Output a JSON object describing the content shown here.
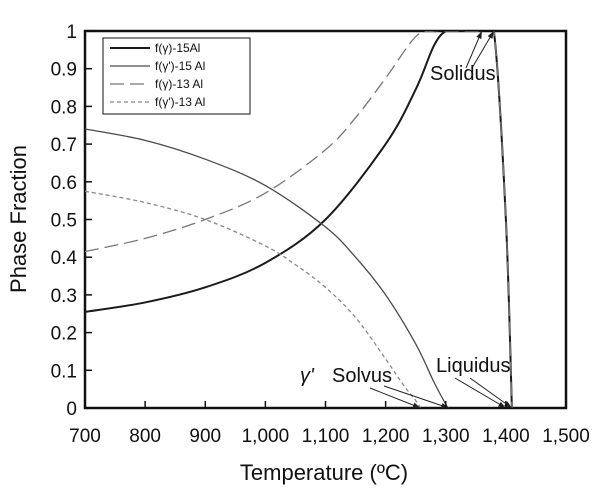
{
  "chart_data": {
    "type": "line",
    "title": "",
    "xlabel": "Temperature (ºC)",
    "ylabel": "Phase Fraction",
    "xlim": [
      700,
      1500
    ],
    "ylim": [
      0,
      1
    ],
    "x_ticks": [
      700,
      800,
      900,
      1000,
      1100,
      1200,
      1300,
      1400,
      1500
    ],
    "x_tick_labels": [
      "700",
      "800",
      "900",
      "1,000",
      "1,100",
      "1,200",
      "1,300",
      "1,400",
      "1,500"
    ],
    "y_ticks": [
      0,
      0.1,
      0.2,
      0.3,
      0.4,
      0.5,
      0.6,
      0.7,
      0.8,
      0.9,
      1
    ],
    "y_tick_labels": [
      "0",
      "0.1",
      "0.2",
      "0.3",
      "0.4",
      "0.5",
      "0.6",
      "0.7",
      "0.8",
      "0.9",
      "1"
    ],
    "grid": false,
    "legend_position": "top-left",
    "series": [
      {
        "name": "f(γ)-15Al",
        "style": "solid",
        "color": "#1a1a1a",
        "x": [
          700,
          800,
          900,
          1000,
          1100,
          1200,
          1250,
          1280,
          1300,
          1320,
          1340,
          1360,
          1380,
          1400,
          1410
        ],
        "y": [
          0.255,
          0.28,
          0.32,
          0.385,
          0.5,
          0.7,
          0.845,
          0.96,
          1.0,
          1.0,
          1.0,
          1.0,
          1.0,
          0.5,
          0
        ]
      },
      {
        "name": "f(γ')-15 Al",
        "style": "solid",
        "color": "#4a4a4a",
        "x": [
          700,
          800,
          900,
          1000,
          1100,
          1150,
          1200,
          1250,
          1280,
          1300,
          1305
        ],
        "y": [
          0.74,
          0.71,
          0.66,
          0.59,
          0.48,
          0.4,
          0.3,
          0.17,
          0.07,
          0.01,
          0
        ]
      },
      {
        "name": "f(γ)-13 Al",
        "style": "longdash",
        "color": "#777777",
        "x": [
          700,
          800,
          900,
          1000,
          1100,
          1150,
          1200,
          1250,
          1280,
          1300,
          1330,
          1360,
          1380,
          1400,
          1410
        ],
        "y": [
          0.415,
          0.45,
          0.5,
          0.57,
          0.685,
          0.77,
          0.875,
          0.985,
          1.0,
          1.0,
          1.0,
          1.0,
          1.0,
          0.5,
          0
        ]
      },
      {
        "name": "f(γ')-13 Al",
        "style": "shortdash",
        "color": "#888888",
        "x": [
          700,
          800,
          900,
          1000,
          1050,
          1100,
          1150,
          1200,
          1230,
          1250,
          1258
        ],
        "y": [
          0.575,
          0.545,
          0.5,
          0.43,
          0.38,
          0.32,
          0.24,
          0.13,
          0.06,
          0.02,
          0
        ]
      }
    ],
    "annotations": [
      {
        "text": "Solidus",
        "x": 1325,
        "y": 0.87
      },
      {
        "text": "Liquidus",
        "x": 1335,
        "y": 0.105
      },
      {
        "text": "Solvus",
        "x": 1085,
        "y": 0.085,
        "prefix": "γ'"
      }
    ]
  }
}
